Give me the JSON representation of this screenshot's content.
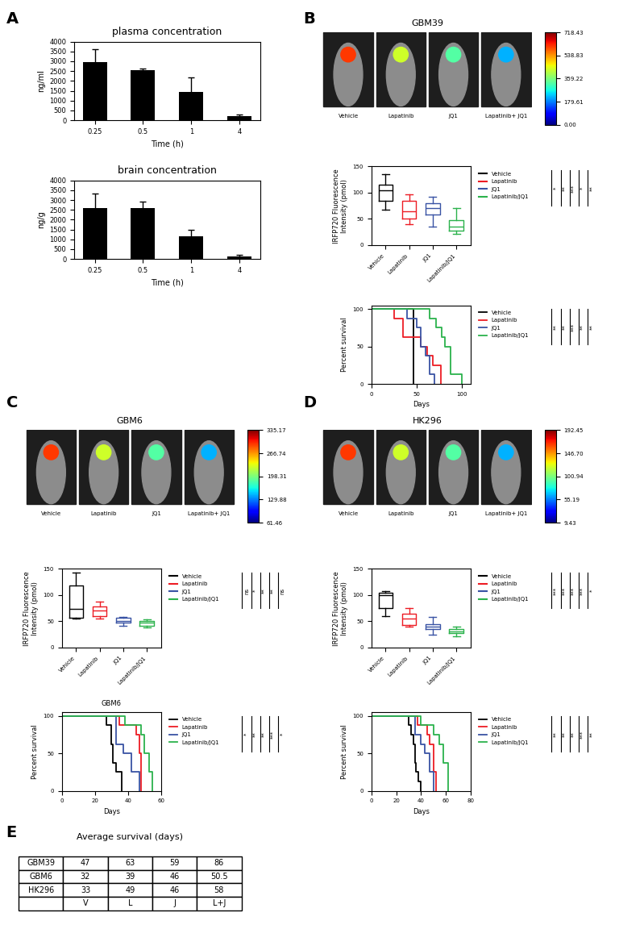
{
  "chart_data": [
    {
      "type": "bar",
      "panel": "A",
      "title": "plasma concentration",
      "xlabel": "Time (h)",
      "ylabel": "ng/ml",
      "categories": [
        "0.25",
        "0.5",
        "1",
        "4"
      ],
      "values": [
        2950,
        2550,
        1420,
        200
      ],
      "errors": [
        650,
        100,
        750,
        80
      ],
      "color": "#000000",
      "ylim": [
        0,
        4000
      ],
      "yticks": [
        0,
        500,
        1000,
        1500,
        2000,
        2500,
        3000,
        3500,
        4000
      ]
    },
    {
      "type": "bar",
      "title": "brain concentration",
      "xlabel": "Time (h)",
      "ylabel": "ng/g",
      "categories": [
        "0.25",
        "0.5",
        "1",
        "4"
      ],
      "values": [
        2600,
        2600,
        1150,
        150
      ],
      "errors": [
        750,
        300,
        350,
        50
      ],
      "color": "#000000",
      "ylim": [
        0,
        4000
      ],
      "yticks": [
        0,
        500,
        1000,
        1500,
        2000,
        2500,
        3000,
        3500,
        4000
      ]
    },
    {
      "type": "image",
      "panel": "B",
      "title": "GBM39",
      "groups": [
        "Vehicle",
        "Lapatinib",
        "JQ1",
        "Lapatinib+ JQ1"
      ],
      "colorbar": {
        "range": [
          0,
          718.43
        ],
        "ticks": [
          {
            "value": 0,
            "label": "0.00"
          },
          {
            "value": 179.61,
            "label": "179.61"
          },
          {
            "value": 359.22,
            "label": "359.22"
          },
          {
            "value": 538.83,
            "label": "538.83"
          },
          {
            "value": 718.43,
            "label": "718.43"
          }
        ]
      }
    },
    {
      "type": "box",
      "ylabel": "IRFP720 Fluorescence\nIntensity (pmol)",
      "categories": [
        "Vehicle",
        "Lapatinib",
        "JQ1",
        "Lapatinib/JQ1"
      ],
      "colors": [
        "#000000",
        "#ed1c24",
        "#3953a4",
        "#2bb24c"
      ],
      "boxes": [
        {
          "min": 68,
          "q1": 85,
          "median": 105,
          "q3": 115,
          "max": 135
        },
        {
          "min": 40,
          "q1": 50,
          "median": 65,
          "q3": 85,
          "max": 97
        },
        {
          "min": 35,
          "q1": 58,
          "median": 70,
          "q3": 80,
          "max": 92
        },
        {
          "min": 22,
          "q1": 28,
          "median": 35,
          "q3": 48,
          "max": 70
        }
      ],
      "ylim": [
        0,
        150
      ],
      "yticks": [
        0,
        50,
        100,
        150
      ],
      "legend": "right",
      "significance": [
        "*",
        "**",
        "***",
        "*",
        "**"
      ]
    },
    {
      "type": "line",
      "line_style": "steps",
      "xlabel": "Days",
      "ylabel": "Percent survival",
      "xlim": [
        0,
        110
      ],
      "xticks": [
        0,
        50,
        100
      ],
      "ylim": [
        0,
        105
      ],
      "yticks": [
        0,
        50,
        100
      ],
      "legend": "right",
      "series": [
        {
          "name": "Vehicle",
          "color": "#000000",
          "x": [
            0,
            47
          ],
          "values": [
            100,
            0
          ]
        },
        {
          "name": "Lapatinib",
          "color": "#ed1c24",
          "x": [
            0,
            25,
            35,
            55,
            62,
            68,
            77
          ],
          "values": [
            100,
            87.5,
            62.5,
            50,
            37.5,
            25,
            0
          ]
        },
        {
          "name": "JQ1",
          "color": "#3953a4",
          "x": [
            0,
            40,
            50,
            55,
            60,
            65,
            70
          ],
          "values": [
            100,
            87.5,
            75,
            50,
            37.5,
            12.5,
            0
          ]
        },
        {
          "name": "Lapatinib/JQ1",
          "color": "#2bb24c",
          "x": [
            0,
            65,
            72,
            78,
            82,
            88,
            100
          ],
          "values": [
            100,
            87.5,
            75,
            62.5,
            50,
            12.5,
            0
          ]
        }
      ],
      "significance": [
        "**",
        "**",
        "***",
        "**",
        "**"
      ]
    },
    {
      "type": "image",
      "panel": "C",
      "title": "GBM6",
      "groups": [
        "Vehicle",
        "Lapatinib",
        "JQ1",
        "Lapatinib+ JQ1"
      ],
      "colorbar": {
        "range": [
          61.46,
          335.17
        ],
        "ticks": [
          61.46,
          129.88,
          198.31,
          266.74,
          335.17
        ]
      }
    },
    {
      "type": "box",
      "ylabel": "IRFP720 Fluorescence\nIntensity (pmol)",
      "categories": [
        "Vehicle",
        "Lapatinib",
        "JQ1",
        "Lapatinib/JQ1"
      ],
      "colors": [
        "#000000",
        "#ed1c24",
        "#3953a4",
        "#2bb24c"
      ],
      "boxes": [
        {
          "min": 55,
          "q1": 57,
          "median": 73,
          "q3": 118,
          "max": 143
        },
        {
          "min": 55,
          "q1": 60,
          "median": 70,
          "q3": 78,
          "max": 87
        },
        {
          "min": 42,
          "q1": 47,
          "median": 50,
          "q3": 57,
          "max": 58
        },
        {
          "min": 38,
          "q1": 42,
          "median": 48,
          "q3": 50,
          "max": 53
        }
      ],
      "ylim": [
        0,
        150
      ],
      "yticks": [
        0,
        50,
        100,
        150
      ],
      "legend": "right",
      "significance": [
        "ns",
        "*",
        "**",
        "**",
        "ns"
      ]
    },
    {
      "type": "line",
      "line_style": "steps",
      "title": "GBM6",
      "xlabel": "Days",
      "ylabel": "Percent survival",
      "xlim": [
        0,
        60
      ],
      "xticks": [
        0,
        20,
        40,
        60
      ],
      "ylim": [
        0,
        105
      ],
      "yticks": [
        0,
        50,
        100
      ],
      "legend": "right",
      "series": [
        {
          "name": "Vehicle",
          "color": "#000000",
          "x": [
            0,
            27,
            30,
            31,
            33,
            36
          ],
          "values": [
            100,
            87.5,
            62.5,
            37.5,
            25,
            0
          ]
        },
        {
          "name": "Lapatinib",
          "color": "#ed1c24",
          "x": [
            0,
            35,
            45,
            47,
            48
          ],
          "values": [
            100,
            87.5,
            75,
            50,
            0
          ]
        },
        {
          "name": "JQ1",
          "color": "#3953a4",
          "x": [
            0,
            33,
            37,
            42,
            47
          ],
          "values": [
            100,
            62.5,
            50,
            25,
            0
          ]
        },
        {
          "name": "Lapatinib/JQ1",
          "color": "#2bb24c",
          "x": [
            0,
            38,
            48,
            50,
            53,
            55
          ],
          "values": [
            100,
            87.5,
            75,
            50,
            25,
            0
          ]
        }
      ],
      "significance": [
        "*",
        "**",
        "**",
        "***",
        "*"
      ]
    },
    {
      "type": "image",
      "panel": "D",
      "title": "HK296",
      "groups": [
        "Vehicle",
        "Lapatinib",
        "JQ1",
        "Lapatinib+ JQ1"
      ],
      "colorbar": {
        "range": [
          9.43,
          192.45
        ],
        "ticks": [
          9.43,
          55.19,
          100.94,
          {
            "value": 146.7,
            "label": "146.70"
          },
          192.45
        ]
      }
    },
    {
      "type": "box",
      "ylabel": "IRFP720 Fluorescence\nIntensity (pmol)",
      "categories": [
        "Vehicle",
        "Lapatinib",
        "JQ1",
        "Lapatinib/JQ1"
      ],
      "colors": [
        "#000000",
        "#ed1c24",
        "#3953a4",
        "#2bb24c"
      ],
      "boxes": [
        {
          "min": 60,
          "q1": 75,
          "median": 100,
          "q3": 105,
          "max": 107
        },
        {
          "min": 40,
          "q1": 43,
          "median": 55,
          "q3": 65,
          "max": 75
        },
        {
          "min": 25,
          "q1": 35,
          "median": 40,
          "q3": 45,
          "max": 58
        },
        {
          "min": 22,
          "q1": 27,
          "median": 30,
          "q3": 35,
          "max": 40
        }
      ],
      "ylim": [
        0,
        150
      ],
      "yticks": [
        0,
        50,
        100,
        150
      ],
      "legend": "right",
      "significance": [
        "***",
        "***",
        "***",
        "***",
        "*"
      ]
    },
    {
      "type": "line",
      "line_style": "steps",
      "xlabel": "Days",
      "ylabel": "Percent survival",
      "xlim": [
        0,
        80
      ],
      "xticks": [
        0,
        20,
        40,
        60,
        80
      ],
      "ylim": [
        0,
        105
      ],
      "yticks": [
        0,
        50,
        100
      ],
      "legend": "right",
      "series": [
        {
          "name": "Vehicle",
          "color": "#000000",
          "x": [
            0,
            30,
            32,
            34,
            35,
            36,
            38,
            40
          ],
          "values": [
            100,
            87.5,
            75,
            62.5,
            37.5,
            25,
            12.5,
            0
          ]
        },
        {
          "name": "Lapatinib",
          "color": "#ed1c24",
          "x": [
            0,
            37,
            45,
            47,
            50,
            52
          ],
          "values": [
            100,
            87.5,
            75,
            62.5,
            25,
            0
          ]
        },
        {
          "name": "JQ1",
          "color": "#3953a4",
          "x": [
            0,
            35,
            40,
            43,
            47,
            50
          ],
          "values": [
            100,
            75,
            62.5,
            50,
            25,
            0
          ]
        },
        {
          "name": "Lapatinib/JQ1",
          "color": "#2bb24c",
          "x": [
            0,
            40,
            50,
            55,
            58,
            62
          ],
          "values": [
            100,
            87.5,
            75,
            62.5,
            37.5,
            0
          ]
        }
      ],
      "significance": [
        "**",
        "**",
        "**",
        "***",
        "**"
      ]
    }
  ],
  "table": {
    "panel": "E",
    "title": "Average survival (days)",
    "rows": [
      [
        "GBM39",
        "47",
        "63",
        "59",
        "86"
      ],
      [
        "GBM6",
        "32",
        "39",
        "46",
        "50.5"
      ],
      [
        "HK296",
        "33",
        "49",
        "46",
        "58"
      ],
      [
        null,
        "V",
        "L",
        "J",
        "L+J"
      ]
    ]
  }
}
